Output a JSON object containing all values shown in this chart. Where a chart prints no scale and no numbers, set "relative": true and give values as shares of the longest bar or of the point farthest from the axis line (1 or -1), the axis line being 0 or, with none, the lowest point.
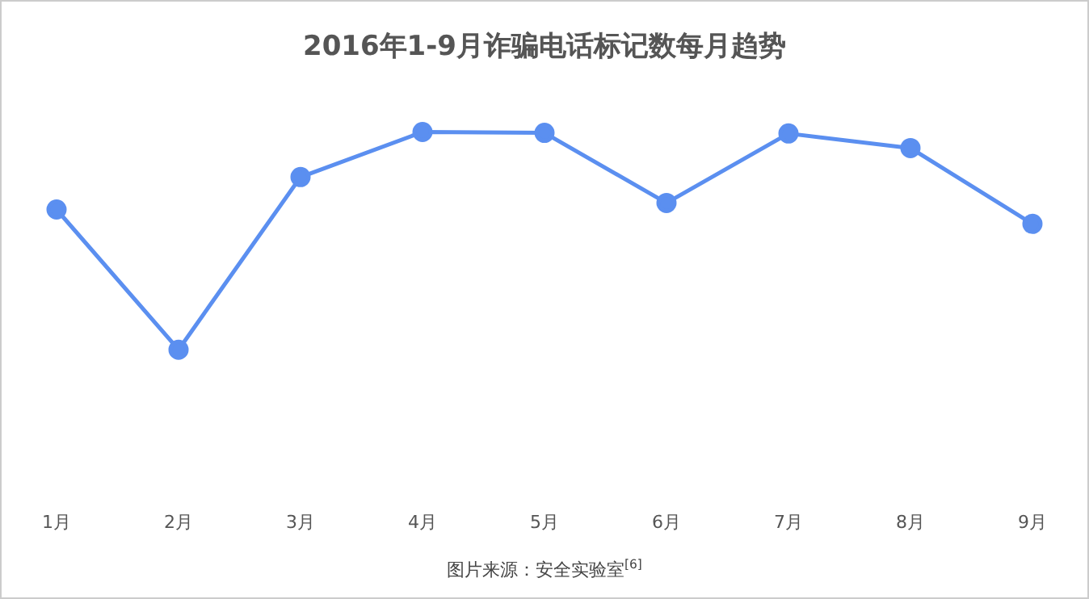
{
  "chart_data": {
    "type": "line",
    "title": "2016年1-9月诈骗电话标记数每月趋势",
    "relative": true,
    "categories": [
      "1月",
      "2月",
      "3月",
      "4月",
      "5月",
      "6月",
      "7月",
      "8月",
      "9月"
    ],
    "series": [
      {
        "color": "#5b8ff0",
        "values": [
          0.644,
          0,
          0.793,
          1,
          0.996,
          0.674,
          0.993,
          0.926,
          0.578
        ]
      }
    ],
    "marker": "circle",
    "line_style": "solid",
    "grid": false,
    "legend": false,
    "annotations": [
      "图片来源：安全实验室$^{[6]}$"
    ]
  }
}
